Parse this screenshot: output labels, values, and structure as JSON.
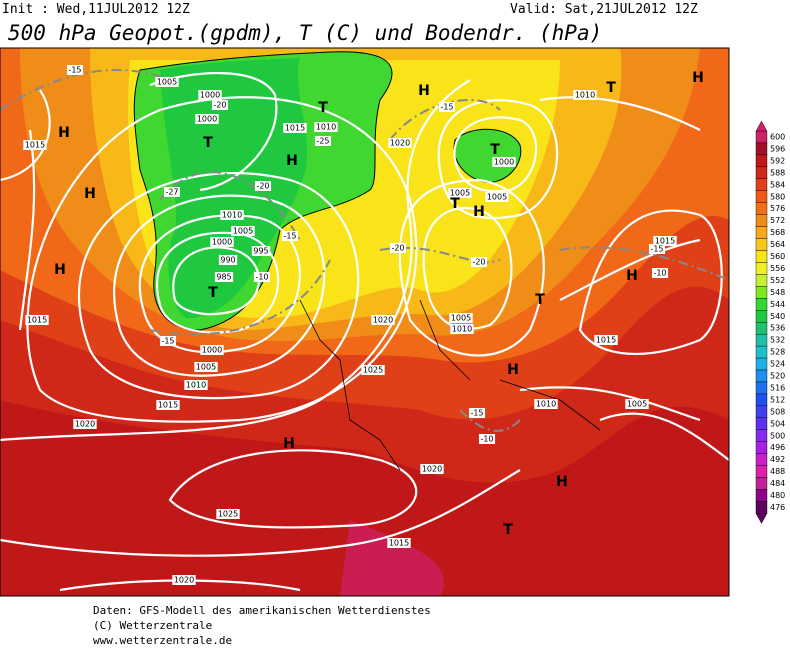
{
  "header": {
    "init": "Init : Wed,11JUL2012 12Z",
    "valid": "Valid: Sat,21JUL2012 12Z",
    "title": "500 hPa Geopot.(gpdm), T (C) und Bodendr. (hPa)"
  },
  "legend": {
    "values": [
      600,
      596,
      592,
      588,
      584,
      580,
      576,
      572,
      568,
      564,
      560,
      556,
      552,
      548,
      544,
      540,
      536,
      532,
      528,
      524,
      520,
      516,
      512,
      508,
      504,
      500,
      496,
      492,
      488,
      484,
      480,
      476
    ],
    "colors": [
      "#d0206a",
      "#a01028",
      "#c01818",
      "#d02818",
      "#e04018",
      "#f05818",
      "#f07018",
      "#f08c18",
      "#f8a818",
      "#f8c818",
      "#f8e418",
      "#f0f020",
      "#c8f030",
      "#80e820",
      "#30d830",
      "#20c840",
      "#20c070",
      "#20c0a8",
      "#20c0c8",
      "#20b0e8",
      "#2090f0",
      "#2070f0",
      "#2050f0",
      "#4040f0",
      "#6030f0",
      "#8828f0",
      "#a820e0",
      "#c820c8",
      "#e020a8",
      "#c02098",
      "#900088",
      "#600060"
    ]
  },
  "map": {
    "isobar_labels": [
      "1005",
      "1000",
      "1000",
      "1015",
      "1010",
      "1010",
      "1005",
      "1000",
      "995",
      "990",
      "985",
      "1000",
      "1005",
      "1010",
      "1015",
      "1020",
      "1025",
      "1020",
      "1015",
      "1015",
      "1020",
      "1010",
      "1005",
      "1005",
      "1000",
      "1005",
      "1010",
      "1015",
      "1015",
      "1010",
      "1005",
      "1020",
      "1025",
      "1015",
      "1020"
    ],
    "temperature_labels": [
      "-15",
      "-20",
      "-25",
      "-20",
      "-27",
      "-15",
      "-10",
      "-15",
      "-15",
      "-20",
      "-20",
      "-15",
      "-10",
      "-15",
      "-10"
    ],
    "centers": [
      "H",
      "H",
      "H",
      "H",
      "H",
      "H",
      "H",
      "H",
      "H",
      "H",
      "H",
      "T",
      "T",
      "T",
      "T",
      "T",
      "T",
      "T",
      "T"
    ]
  },
  "footer": {
    "lines": [
      "Daten: GFS-Modell des amerikanischen Wetterdienstes",
      "(C) Wetterzentrale",
      "www.wetterzentrale.de"
    ]
  }
}
